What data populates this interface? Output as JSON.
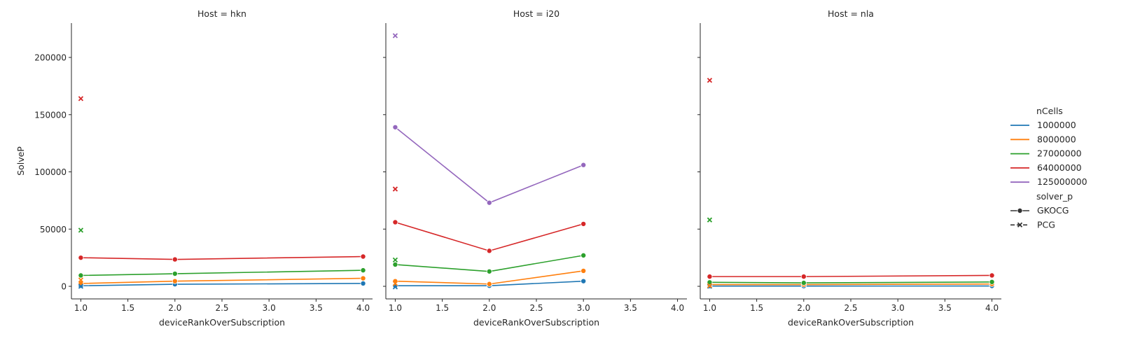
{
  "chart_data": {
    "type": "line",
    "facet_titles": [
      "Host = hkn",
      "Host = i20",
      "Host = nla"
    ],
    "xlabel": "deviceRankOverSubscription",
    "ylabel": "SolveP",
    "xlim": [
      0.9,
      4.1
    ],
    "ylim": [
      -11000,
      230000
    ],
    "x_ticks": [
      "1.0",
      "1.5",
      "2.0",
      "2.5",
      "3.0",
      "3.5",
      "4.0"
    ],
    "y_ticks": [
      "0",
      "50000",
      "100000",
      "150000",
      "200000"
    ],
    "legend": {
      "hue_title": "nCells",
      "hue_entries": [
        "1000000",
        "8000000",
        "27000000",
        "64000000",
        "125000000"
      ],
      "style_title": "solver_p",
      "style_entries": [
        "GKOCG",
        "PCG"
      ],
      "placement": "right"
    },
    "colors": {
      "1000000": "#1f77b4",
      "8000000": "#ff7f0e",
      "27000000": "#2ca02c",
      "64000000": "#d62728",
      "125000000": "#9467bd"
    },
    "facets": [
      {
        "host": "hkn",
        "series": [
          {
            "nCells": "1000000",
            "solver": "GKOCG",
            "x": [
              1,
              2,
              4
            ],
            "y": [
              500,
              1800,
              2500
            ]
          },
          {
            "nCells": "8000000",
            "solver": "GKOCG",
            "x": [
              1,
              2,
              4
            ],
            "y": [
              2500,
              4500,
              7000
            ]
          },
          {
            "nCells": "27000000",
            "solver": "GKOCG",
            "x": [
              1,
              2,
              4
            ],
            "y": [
              9500,
              11000,
              14000
            ]
          },
          {
            "nCells": "64000000",
            "solver": "GKOCG",
            "x": [
              1,
              2,
              4
            ],
            "y": [
              25000,
              23500,
              26000
            ]
          },
          {
            "nCells": "1000000",
            "solver": "PCG",
            "x": [
              1
            ],
            "y": [
              0
            ]
          },
          {
            "nCells": "8000000",
            "solver": "PCG",
            "x": [
              1
            ],
            "y": [
              5500
            ]
          },
          {
            "nCells": "27000000",
            "solver": "PCG",
            "x": [
              1
            ],
            "y": [
              49000
            ]
          },
          {
            "nCells": "64000000",
            "solver": "PCG",
            "x": [
              1
            ],
            "y": [
              164000
            ]
          }
        ]
      },
      {
        "host": "i20",
        "series": [
          {
            "nCells": "1000000",
            "solver": "GKOCG",
            "x": [
              1,
              2,
              3
            ],
            "y": [
              500,
              500,
              4500
            ]
          },
          {
            "nCells": "8000000",
            "solver": "GKOCG",
            "x": [
              1,
              2,
              3
            ],
            "y": [
              4500,
              2000,
              13500
            ]
          },
          {
            "nCells": "27000000",
            "solver": "GKOCG",
            "x": [
              1,
              2,
              3
            ],
            "y": [
              19000,
              13000,
              27000
            ]
          },
          {
            "nCells": "64000000",
            "solver": "GKOCG",
            "x": [
              1,
              2,
              3
            ],
            "y": [
              56000,
              31000,
              54500
            ]
          },
          {
            "nCells": "125000000",
            "solver": "GKOCG",
            "x": [
              1,
              2,
              3
            ],
            "y": [
              139000,
              73000,
              106000
            ]
          },
          {
            "nCells": "1000000",
            "solver": "PCG",
            "x": [
              1
            ],
            "y": [
              -500
            ]
          },
          {
            "nCells": "8000000",
            "solver": "PCG",
            "x": [
              1
            ],
            "y": [
              2500
            ]
          },
          {
            "nCells": "27000000",
            "solver": "PCG",
            "x": [
              1
            ],
            "y": [
              23000
            ]
          },
          {
            "nCells": "64000000",
            "solver": "PCG",
            "x": [
              1
            ],
            "y": [
              85000
            ]
          },
          {
            "nCells": "125000000",
            "solver": "PCG",
            "x": [
              1
            ],
            "y": [
              219000
            ]
          }
        ]
      },
      {
        "host": "nla",
        "series": [
          {
            "nCells": "1000000",
            "solver": "GKOCG",
            "x": [
              1,
              2,
              4
            ],
            "y": [
              200,
              200,
              300
            ]
          },
          {
            "nCells": "8000000",
            "solver": "GKOCG",
            "x": [
              1,
              2,
              4
            ],
            "y": [
              1500,
              1500,
              2000
            ]
          },
          {
            "nCells": "27000000",
            "solver": "GKOCG",
            "x": [
              1,
              2,
              4
            ],
            "y": [
              3500,
              3000,
              3800
            ]
          },
          {
            "nCells": "64000000",
            "solver": "GKOCG",
            "x": [
              1,
              2,
              4
            ],
            "y": [
              8500,
              8500,
              9500
            ]
          },
          {
            "nCells": "1000000",
            "solver": "PCG",
            "x": [
              1
            ],
            "y": [
              0
            ]
          },
          {
            "nCells": "8000000",
            "solver": "PCG",
            "x": [
              1
            ],
            "y": [
              500
            ]
          },
          {
            "nCells": "27000000",
            "solver": "PCG",
            "x": [
              1
            ],
            "y": [
              58000
            ]
          },
          {
            "nCells": "64000000",
            "solver": "PCG",
            "x": [
              1
            ],
            "y": [
              180000
            ]
          }
        ]
      }
    ]
  }
}
